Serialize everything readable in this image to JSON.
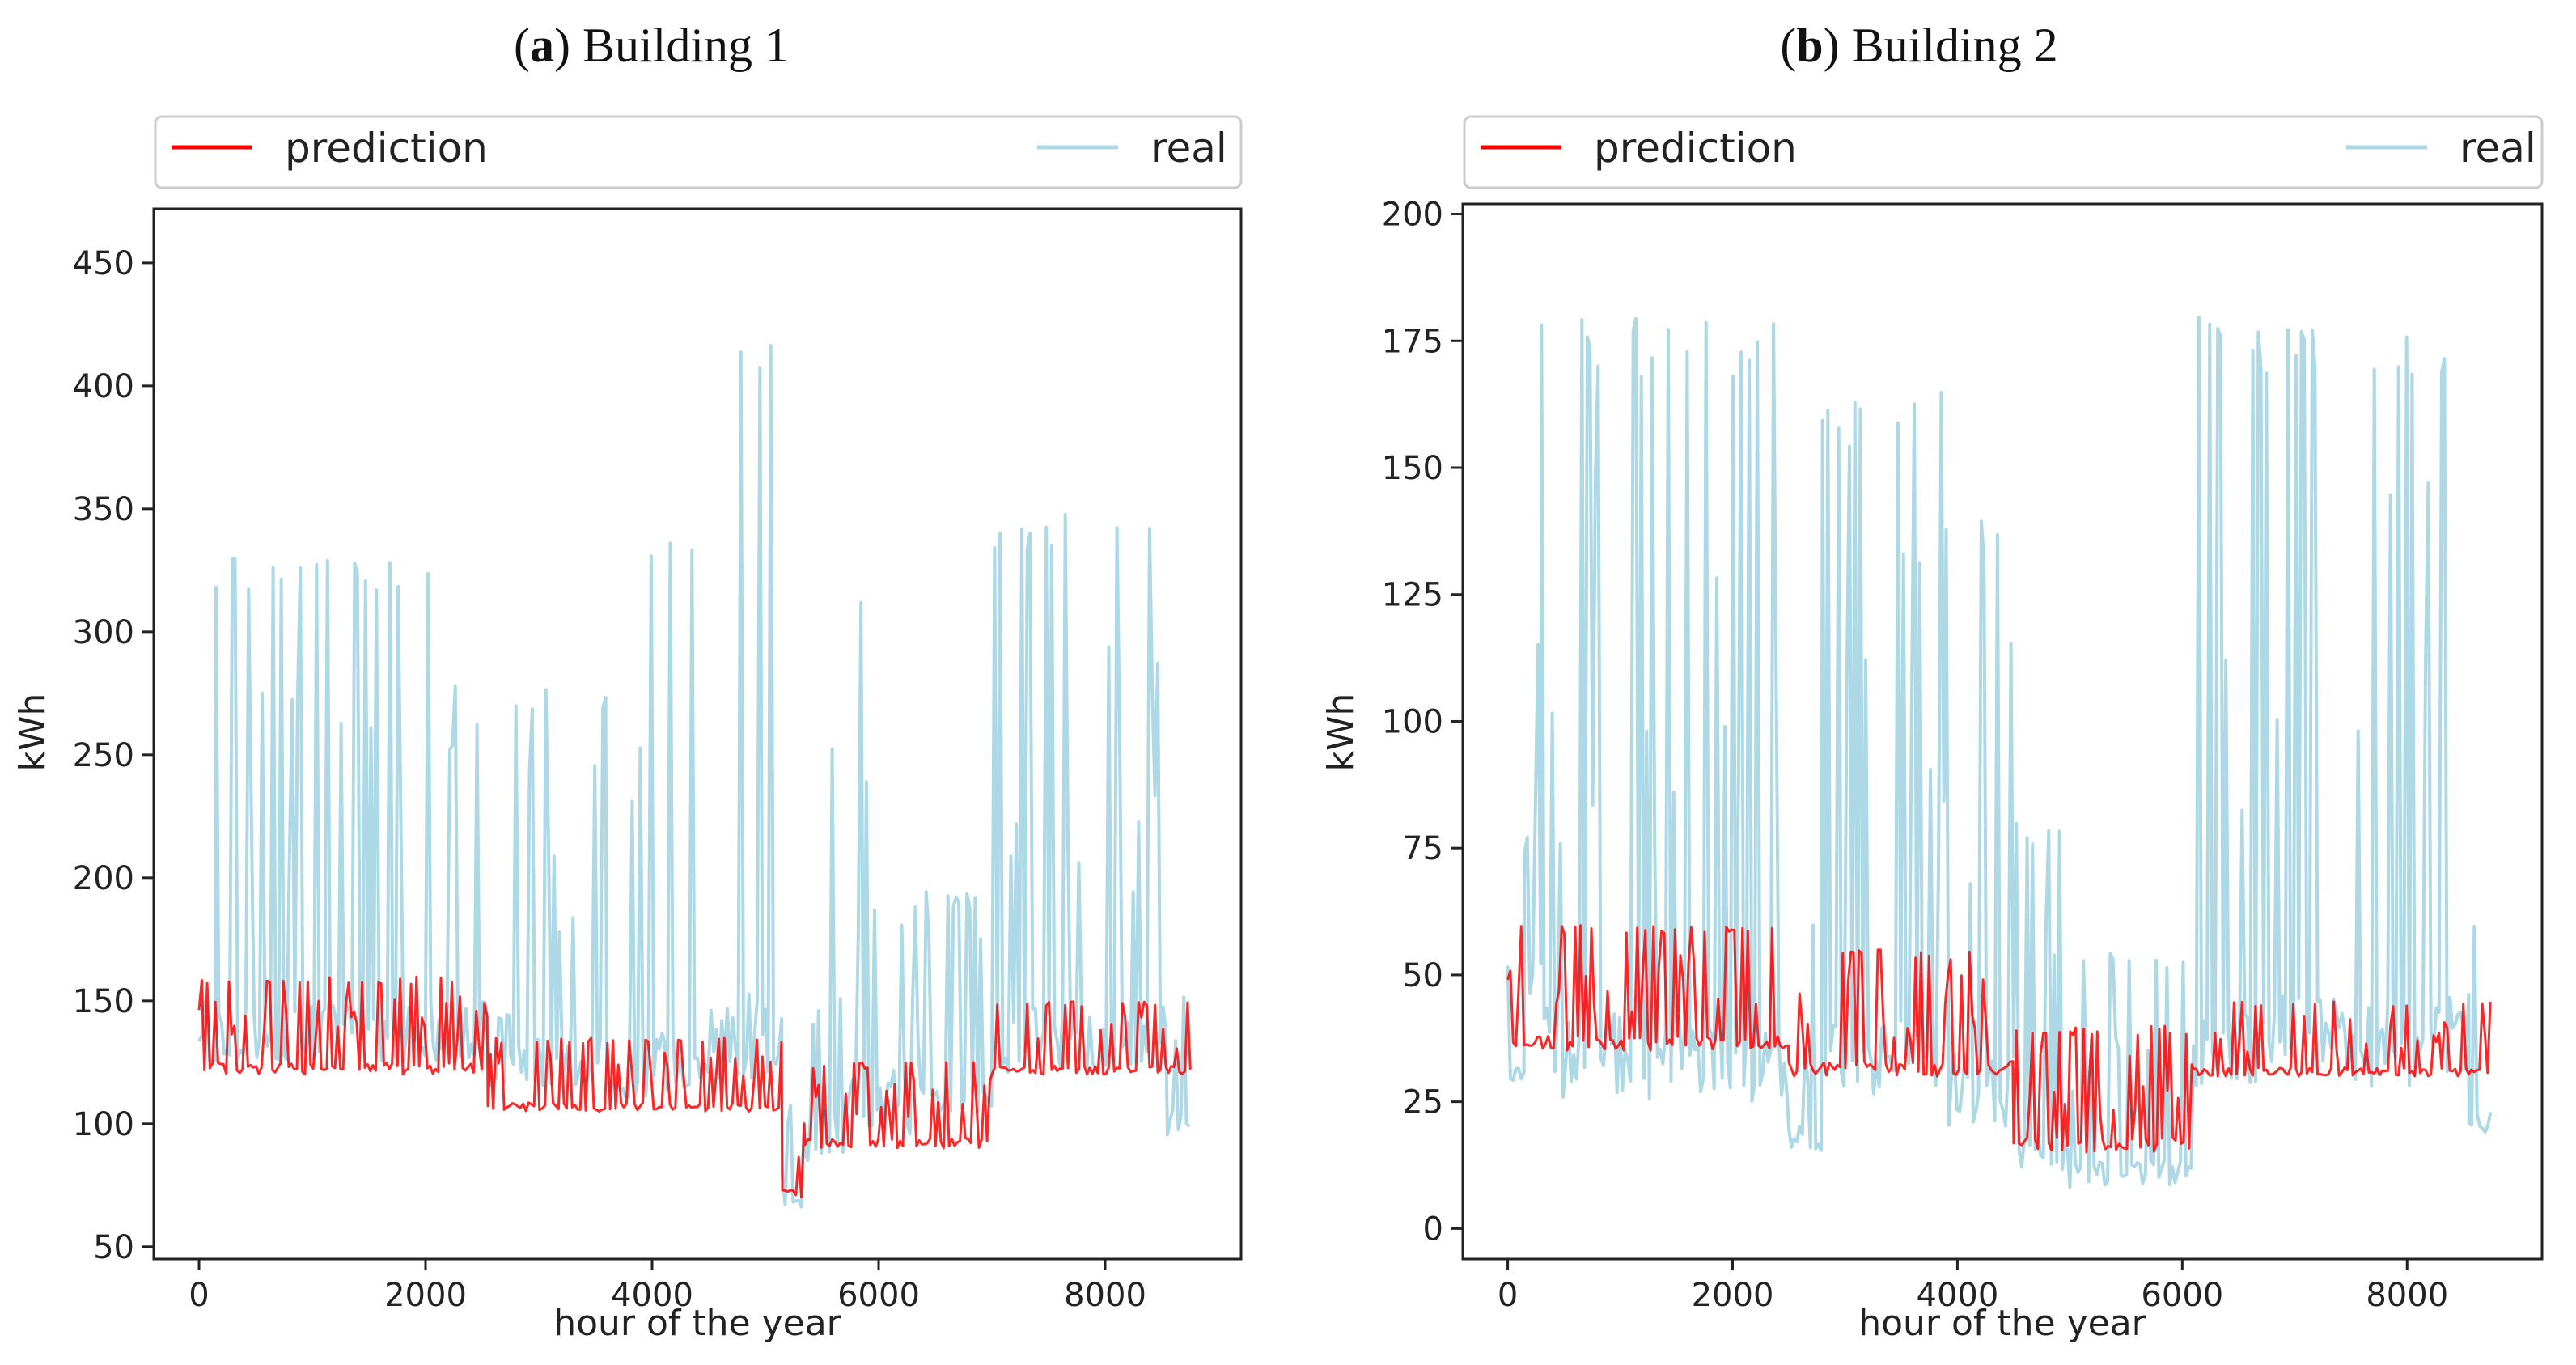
{
  "figure": {
    "colors": {
      "prediction": "#ff0000",
      "real": "#add8e6",
      "axis": "#222222",
      "legend_border": "#cccccc"
    }
  },
  "chart_data": [
    {
      "type": "line",
      "panel_letter": "a",
      "panel_rest": ") Building 1",
      "panel_paren": "(",
      "title": "(a) Building 1",
      "xlabel": "hour of the year",
      "ylabel": "kWh",
      "xlim": [
        -400,
        9200
      ],
      "ylim": [
        45,
        472
      ],
      "xticks": [
        0,
        2000,
        4000,
        6000,
        8000
      ],
      "xtick_labels": [
        "0",
        "2000",
        "4000",
        "6000",
        "8000"
      ],
      "yticks": [
        50,
        100,
        150,
        200,
        250,
        300,
        350,
        400,
        450
      ],
      "ytick_labels": [
        "50",
        "100",
        "150",
        "200",
        "250",
        "300",
        "350",
        "400",
        "450"
      ],
      "legend": [
        "prediction",
        "real"
      ],
      "legend_placement": "top, outside",
      "series": [
        {
          "name": "real",
          "segments": [
            {
              "start": 0,
              "end": 150,
              "low": 125,
              "high": 150
            },
            {
              "start": 150,
              "end": 2550,
              "low": 125,
              "high": 330
            },
            {
              "start": 2550,
              "end": 2750,
              "low": 115,
              "high": 145
            },
            {
              "start": 2750,
              "end": 3600,
              "low": 115,
              "high": 280
            },
            {
              "start": 3600,
              "end": 3800,
              "low": 110,
              "high": 190
            },
            {
              "start": 3800,
              "end": 4400,
              "low": 110,
              "high": 340
            },
            {
              "start": 4400,
              "end": 5150,
              "low": 115,
              "high": 430
            },
            {
              "start": 5150,
              "end": 5350,
              "low": 65,
              "high": 110
            },
            {
              "start": 5350,
              "end": 5700,
              "low": 85,
              "high": 260
            },
            {
              "start": 5700,
              "end": 6300,
              "low": 95,
              "high": 330
            },
            {
              "start": 6300,
              "end": 7000,
              "low": 105,
              "high": 195
            },
            {
              "start": 7000,
              "end": 8550,
              "low": 120,
              "high": 350
            },
            {
              "start": 8550,
              "end": 8760,
              "low": 95,
              "high": 185
            }
          ]
        },
        {
          "name": "prediction",
          "segments": [
            {
              "start": 0,
              "end": 2550,
              "low": 120,
              "high": 160
            },
            {
              "start": 2550,
              "end": 5150,
              "low": 105,
              "high": 135
            },
            {
              "start": 5150,
              "end": 5350,
              "low": 70,
              "high": 100
            },
            {
              "start": 5350,
              "end": 7000,
              "low": 90,
              "high": 125
            },
            {
              "start": 7000,
              "end": 8760,
              "low": 120,
              "high": 150
            }
          ]
        }
      ]
    },
    {
      "type": "line",
      "panel_letter": "b",
      "panel_rest": ") Building 2",
      "panel_paren": "(",
      "title": "(b) Building 2",
      "xlabel": "hour of the year",
      "ylabel": "kWh",
      "xlim": [
        -400,
        9200
      ],
      "ylim": [
        -6,
        202
      ],
      "xticks": [
        0,
        2000,
        4000,
        6000,
        8000
      ],
      "xtick_labels": [
        "0",
        "2000",
        "4000",
        "6000",
        "8000"
      ],
      "yticks": [
        0,
        25,
        50,
        75,
        100,
        125,
        150,
        175,
        200
      ],
      "ytick_labels": [
        "0",
        "25",
        "50",
        "75",
        "100",
        "125",
        "150",
        "175",
        "200"
      ],
      "legend": [
        "prediction",
        "real"
      ],
      "legend_placement": "top, outside",
      "series": [
        {
          "name": "real",
          "segments": [
            {
              "start": 0,
              "end": 150,
              "low": 28,
              "high": 60
            },
            {
              "start": 150,
              "end": 300,
              "low": 45,
              "high": 120
            },
            {
              "start": 300,
              "end": 2500,
              "low": 25,
              "high": 180
            },
            {
              "start": 2500,
              "end": 2800,
              "low": 15,
              "high": 60
            },
            {
              "start": 2800,
              "end": 3900,
              "low": 25,
              "high": 165
            },
            {
              "start": 3900,
              "end": 4500,
              "low": 20,
              "high": 140
            },
            {
              "start": 4500,
              "end": 5000,
              "low": 10,
              "high": 80
            },
            {
              "start": 5000,
              "end": 6100,
              "low": 8,
              "high": 55
            },
            {
              "start": 6100,
              "end": 8550,
              "low": 28,
              "high": 180
            },
            {
              "start": 8550,
              "end": 8760,
              "low": 18,
              "high": 62
            }
          ]
        },
        {
          "name": "prediction",
          "segments": [
            {
              "start": 0,
              "end": 2500,
              "low": 35,
              "high": 60
            },
            {
              "start": 2500,
              "end": 4500,
              "low": 30,
              "high": 55
            },
            {
              "start": 4500,
              "end": 6100,
              "low": 15,
              "high": 40
            },
            {
              "start": 6100,
              "end": 8760,
              "low": 30,
              "high": 45
            }
          ]
        }
      ]
    }
  ]
}
